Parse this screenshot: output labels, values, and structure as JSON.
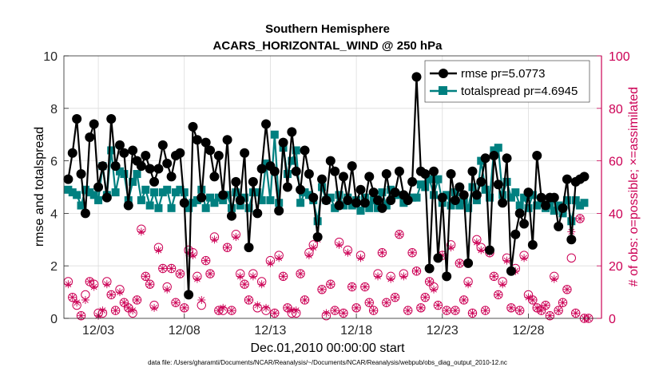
{
  "chart_data": {
    "type": "line",
    "title": "Southern Hemisphere",
    "subtitle": "ACARS_HORIZONTAL_WIND @ 250 hPa",
    "xlabel": "Dec.01,2010 00:00:00 start",
    "ylabel_left": "rmse and totalspread",
    "ylabel_right": "# of obs: o=possible; ×=assimilated",
    "footnote": "data file: /Users/gharamti/Documents/NCAR/Reanalysis/~/Documents/NCAR/Reanalysis/webpub/obs_diag_output_2010-12.nc",
    "x_ticks": [
      3,
      8,
      13,
      18,
      23,
      28
    ],
    "x_tick_labels": [
      "12/03",
      "12/08",
      "12/13",
      "12/18",
      "12/23",
      "12/28"
    ],
    "xlim": [
      1,
      32.25
    ],
    "ylim_left": [
      0,
      10
    ],
    "y_ticks_left": [
      "0",
      "2",
      "4",
      "6",
      "8",
      "10"
    ],
    "ylim_right": [
      0,
      100
    ],
    "y_ticks_right": [
      "0",
      "20",
      "40",
      "60",
      "80",
      "100"
    ],
    "grid": true,
    "legend_position": "top-right",
    "colors": {
      "rmse": "#000000",
      "totalspread": "#008080",
      "obs": "#cc0055",
      "right_axis": "#cc0055"
    },
    "series": [
      {
        "name": "rmse pr=5.0773",
        "axis": "left",
        "x_start": 1.25,
        "x_step": 0.25,
        "values": [
          5.3,
          6.3,
          7.6,
          5.5,
          4.0,
          6.9,
          7.4,
          5.0,
          5.8,
          4.6,
          7.6,
          5.8,
          6.6,
          6.3,
          4.3,
          6.4,
          6.0,
          5.8,
          6.2,
          5.7,
          5.2,
          5.7,
          6.6,
          5.9,
          5.4,
          6.2,
          6.3,
          4.4,
          0.9,
          7.3,
          6.8,
          4.6,
          6.7,
          6.4,
          5.4,
          6.2,
          4.7,
          6.8,
          3.9,
          5.2,
          4.5,
          6.3,
          2.7,
          5.2,
          4.0,
          5.7,
          7.4,
          5.8,
          5.6,
          4.1,
          6.7,
          5.0,
          7.1,
          5.6,
          4.9,
          6.4,
          5.5,
          4.6,
          3.1,
          5.3,
          4.5,
          6.0,
          5.6,
          4.3,
          5.4,
          4.5,
          5.8,
          4.4,
          4.9,
          4.4,
          5.4,
          4.8,
          4.5,
          4.2,
          5.5,
          4.5,
          4.8,
          5.6,
          4.7,
          4.5,
          5.2,
          9.2,
          5.6,
          5.5,
          1.9,
          5.6,
          2.3,
          4.6,
          1.6,
          5.5,
          4.5,
          5.0,
          4.7,
          2.1,
          5.6,
          4.7,
          5.2,
          6.1,
          2.6,
          6.2,
          5.1,
          4.4,
          6.1,
          1.8,
          3.2,
          4.0,
          3.6,
          4.8,
          2.8,
          6.2,
          4.6,
          4.3,
          4.6,
          4.6,
          3.5,
          4.2,
          5.3,
          3.0,
          5.2,
          5.3,
          5.4
        ]
      },
      {
        "name": "totalspread pr=4.6945",
        "axis": "left",
        "x_start": 1.25,
        "x_step": 0.25,
        "values": [
          4.9,
          4.8,
          4.7,
          4.3,
          4.9,
          4.8,
          4.7,
          4.5,
          5.8,
          4.7,
          6.4,
          4.8,
          5.6,
          5.5,
          4.5,
          5.2,
          5.5,
          4.5,
          4.9,
          4.3,
          4.8,
          4.2,
          4.8,
          4.9,
          4.2,
          4.8,
          4.9,
          4.8,
          4.2,
          4.4,
          4.5,
          4.9,
          4.2,
          4.6,
          4.4,
          4.6,
          4.5,
          4.7,
          4.2,
          4.8,
          4.3,
          4.6,
          4.2,
          4.8,
          4.8,
          4.5,
          5.9,
          4.5,
          7.0,
          4.4,
          6.5,
          5.5,
          6.0,
          6.4,
          4.4,
          4.8,
          4.7,
          4.5,
          3.7,
          5.0,
          4.5,
          4.6,
          4.2,
          4.7,
          4.3,
          4.6,
          4.3,
          4.5,
          4.1,
          4.6,
          4.2,
          4.5,
          4.2,
          4.8,
          4.3,
          4.9,
          4.7,
          4.7,
          4.4,
          4.6,
          4.6,
          4.6,
          5.1,
          5.0,
          5.3,
          4.7,
          5.3,
          4.4,
          4.7,
          4.3,
          4.8,
          4.3,
          4.5,
          4.2,
          5.0,
          4.5,
          6.0,
          4.9,
          4.6,
          6.4,
          6.5,
          4.7,
          5.2,
          4.6,
          4.8,
          4.3,
          4.6,
          4.2,
          4.7,
          4.3,
          4.5,
          4.2,
          4.3,
          4.1,
          4.3,
          4.0,
          4.5,
          3.7,
          4.5,
          4.3,
          4.4
        ]
      },
      {
        "name": "# of obs possible",
        "axis": "right",
        "marker": "circle",
        "x_start": 1.25,
        "x_step": 0.25,
        "values": [
          14,
          8,
          5,
          1,
          9,
          14,
          13,
          2,
          2,
          14,
          9,
          3,
          11,
          6,
          4,
          2,
          7,
          34,
          16,
          13,
          5,
          27,
          19,
          12,
          19,
          6,
          17,
          4,
          26,
          25,
          16,
          5,
          22,
          17,
          31,
          3,
          3,
          27,
          3,
          32,
          17,
          13,
          7,
          17,
          4,
          14,
          3,
          22,
          2,
          24,
          16,
          4,
          2,
          2,
          17,
          7,
          25,
          28,
          31,
          11,
          1,
          13,
          3,
          29,
          2,
          26,
          12,
          4,
          24,
          12,
          6,
          3,
          17,
          25,
          6,
          16,
          8,
          32,
          17,
          3,
          25,
          18,
          4,
          8,
          14,
          12,
          5,
          24,
          3,
          28,
          3,
          21,
          7,
          14,
          2,
          30,
          27,
          3,
          25,
          16,
          9,
          14,
          23,
          4,
          19,
          3,
          24,
          9,
          7,
          4,
          3,
          5,
          1,
          16,
          3,
          6,
          11,
          23,
          2,
          38,
          0,
          0
        ]
      },
      {
        "name": "# of obs assimilated",
        "axis": "right",
        "marker": "asterisk",
        "x_start": 1.25,
        "x_step": 0.25,
        "values": [
          13,
          8,
          6,
          1,
          7,
          14,
          12,
          1,
          3,
          13,
          9,
          3,
          10,
          6,
          4,
          3,
          7,
          33,
          16,
          13,
          4,
          26,
          19,
          11,
          19,
          6,
          17,
          4,
          25,
          24,
          15,
          7,
          22,
          17,
          30,
          3,
          4,
          27,
          3,
          31,
          16,
          13,
          7,
          16,
          5,
          13,
          4,
          21,
          2,
          23,
          16,
          4,
          3,
          3,
          17,
          7,
          24,
          27,
          30,
          11,
          2,
          13,
          3,
          28,
          2,
          25,
          12,
          4,
          23,
          12,
          6,
          3,
          16,
          25,
          6,
          15,
          8,
          32,
          16,
          3,
          25,
          18,
          4,
          8,
          14,
          11,
          5,
          24,
          3,
          27,
          3,
          21,
          7,
          13,
          2,
          29,
          26,
          3,
          25,
          16,
          9,
          13,
          22,
          4,
          18,
          3,
          23,
          8,
          7,
          4,
          3,
          5,
          1,
          15,
          3,
          6,
          11,
          33,
          2,
          38,
          0,
          0
        ]
      }
    ]
  }
}
